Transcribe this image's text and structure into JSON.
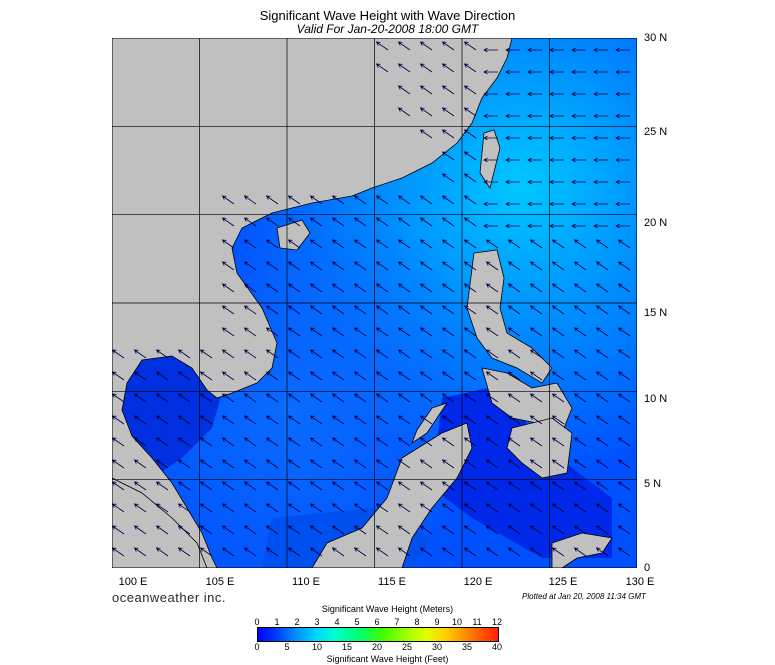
{
  "header": {
    "title": "Significant Wave Height with Wave Direction",
    "subtitle": "Valid For Jan-20-2008 18:00 GMT"
  },
  "map": {
    "lat_labels": [
      "30 N",
      "25 N",
      "20 N",
      "15 N",
      "10 N",
      "5 N",
      "0"
    ],
    "lon_labels": [
      "100 E",
      "105 E",
      "110 E",
      "115 E",
      "120 E",
      "125 E",
      "130 E"
    ],
    "land_color": "#c0c0c0",
    "sea_color_low": "#0000ff",
    "sea_color_high": "#00d0ff",
    "arrow_direction": "toward southwest"
  },
  "footer": {
    "brand": "oceanweather inc.",
    "plotted": "Plotted at Jan 20, 2008 11:34 GMT"
  },
  "colorbar": {
    "meters_title": "Significant Wave Height (Meters)",
    "feet_title": "Significant Wave Height (Feet)",
    "meters_ticks": [
      "0",
      "1",
      "2",
      "3",
      "4",
      "5",
      "6",
      "7",
      "8",
      "9",
      "10",
      "11",
      "12"
    ],
    "feet_ticks": [
      "0",
      "5",
      "10",
      "15",
      "20",
      "25",
      "30",
      "35",
      "40"
    ]
  }
}
